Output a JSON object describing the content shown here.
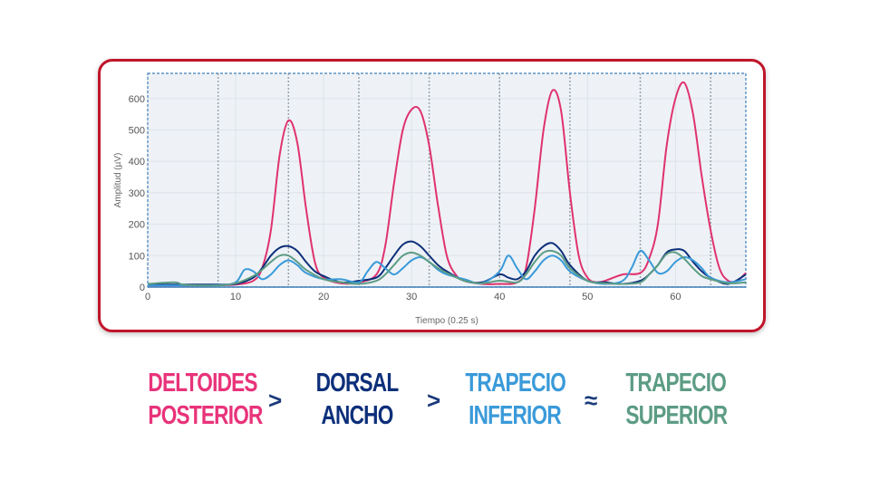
{
  "chart_data": {
    "type": "line",
    "xlabel": "Tiempo (0.25 s)",
    "ylabel": "Amplitud (µV)",
    "xlim": [
      0,
      68
    ],
    "ylim": [
      0,
      680
    ],
    "xticks": [
      0,
      10,
      20,
      30,
      40,
      50,
      60
    ],
    "yticks": [
      0,
      100,
      200,
      300,
      400,
      500,
      600
    ],
    "vlines": [
      8,
      16,
      24,
      32,
      40,
      48,
      56,
      64
    ],
    "series": [
      {
        "name": "Deltoides posterior",
        "color": "#e0326e",
        "x": [
          0,
          4,
          8,
          10,
          12,
          13,
          14,
          15,
          16,
          17,
          18,
          19,
          20,
          22,
          24,
          26,
          27,
          28,
          29,
          30,
          31,
          32,
          33,
          34,
          35,
          36,
          38,
          40,
          42,
          43,
          44,
          45,
          46,
          47,
          48,
          49,
          50,
          51,
          52,
          54,
          56,
          57,
          58,
          59,
          60,
          61,
          62,
          63,
          64,
          65,
          66,
          67,
          68
        ],
        "y": [
          5,
          5,
          6,
          8,
          20,
          60,
          180,
          420,
          530,
          460,
          250,
          80,
          30,
          12,
          15,
          40,
          130,
          330,
          500,
          565,
          560,
          450,
          260,
          100,
          40,
          20,
          10,
          10,
          15,
          60,
          250,
          500,
          625,
          560,
          300,
          100,
          30,
          15,
          20,
          40,
          45,
          90,
          200,
          450,
          600,
          650,
          550,
          350,
          180,
          60,
          20,
          20,
          45
        ]
      },
      {
        "name": "Dorsal ancho",
        "color": "#0d2f7a",
        "x": [
          0,
          4,
          8,
          10,
          12,
          13,
          14,
          15,
          16,
          17,
          18,
          19,
          20,
          22,
          24,
          26,
          27,
          28,
          29,
          30,
          31,
          32,
          33,
          34,
          36,
          38,
          40,
          41,
          42,
          43,
          44,
          45,
          46,
          47,
          48,
          50,
          52,
          54,
          56,
          57,
          58,
          59,
          60,
          61,
          62,
          63,
          64,
          66,
          68
        ],
        "y": [
          8,
          8,
          8,
          10,
          30,
          60,
          100,
          125,
          130,
          115,
          80,
          50,
          35,
          15,
          20,
          30,
          60,
          100,
          135,
          145,
          130,
          100,
          70,
          50,
          20,
          15,
          40,
          30,
          25,
          50,
          100,
          130,
          140,
          115,
          70,
          20,
          15,
          10,
          20,
          40,
          70,
          110,
          120,
          115,
          80,
          50,
          30,
          10,
          40
        ]
      },
      {
        "name": "Trapecio inferior",
        "color": "#3a9ad9",
        "x": [
          0,
          4,
          8,
          10,
          11,
          12,
          13,
          14,
          15,
          16,
          17,
          18,
          20,
          22,
          24,
          25,
          26,
          27,
          28,
          29,
          30,
          31,
          32,
          33,
          34,
          36,
          38,
          40,
          41,
          42,
          43,
          44,
          45,
          46,
          47,
          48,
          50,
          52,
          54,
          55,
          56,
          57,
          58,
          59,
          60,
          61,
          62,
          63,
          64,
          66,
          68
        ],
        "y": [
          5,
          5,
          6,
          15,
          55,
          50,
          25,
          40,
          70,
          85,
          70,
          45,
          25,
          25,
          15,
          50,
          80,
          60,
          40,
          60,
          85,
          95,
          80,
          55,
          40,
          25,
          12,
          50,
          100,
          60,
          25,
          50,
          85,
          100,
          85,
          50,
          20,
          10,
          20,
          60,
          115,
          85,
          45,
          50,
          80,
          95,
          85,
          60,
          30,
          15,
          25
        ]
      },
      {
        "name": "Trapecio superior",
        "color": "#5c9c84",
        "x": [
          0,
          3,
          4,
          6,
          8,
          10,
          12,
          13,
          14,
          15,
          16,
          17,
          18,
          20,
          22,
          24,
          26,
          27,
          28,
          29,
          30,
          31,
          32,
          33,
          34,
          36,
          38,
          40,
          42,
          43,
          44,
          45,
          46,
          47,
          48,
          50,
          52,
          54,
          56,
          57,
          58,
          59,
          60,
          61,
          62,
          63,
          64,
          66,
          68
        ],
        "y": [
          10,
          15,
          8,
          5,
          5,
          12,
          35,
          55,
          80,
          100,
          100,
          80,
          55,
          25,
          15,
          10,
          20,
          40,
          70,
          100,
          110,
          100,
          80,
          60,
          45,
          20,
          12,
          20,
          15,
          40,
          80,
          110,
          115,
          100,
          60,
          20,
          12,
          10,
          15,
          40,
          70,
          105,
          110,
          90,
          60,
          35,
          25,
          12,
          15
        ]
      }
    ]
  },
  "legend": {
    "items": [
      {
        "line1": "DELTOIDES",
        "line2": "POSTERIOR",
        "color": "#e8337a"
      },
      {
        "line1": "DORSAL",
        "line2": "ANCHO",
        "color": "#0d2f7a"
      },
      {
        "line1": "TRAPECIO",
        "line2": "INFERIOR",
        "color": "#3a9ad9"
      },
      {
        "line1": "TRAPECIO",
        "line2": "SUPERIOR",
        "color": "#5c9c84"
      }
    ],
    "operators": [
      ">",
      ">",
      "≈"
    ]
  }
}
